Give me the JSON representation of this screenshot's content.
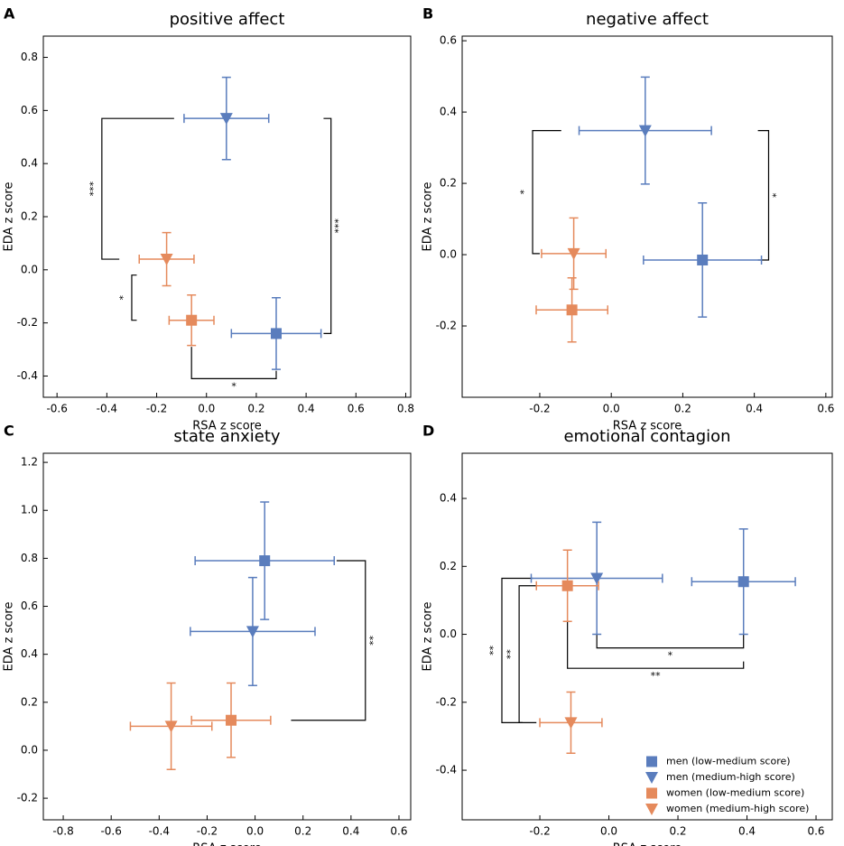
{
  "chart_data": [
    {
      "type": "scatter",
      "label": "A",
      "title": "positive affect",
      "xlabel": "RSA z score",
      "ylabel": "EDA z score",
      "xlim": [
        -0.655,
        0.82
      ],
      "ylim": [
        -0.48,
        0.88
      ],
      "xticks": [
        -0.6,
        -0.4,
        -0.2,
        {
          "value": 0,
          "label": "0.0"
        },
        0.2,
        0.4,
        0.6,
        0.8
      ],
      "yticks": [
        -0.4,
        -0.2,
        {
          "value": 0,
          "label": "0.0"
        },
        0.2,
        0.4,
        0.6,
        0.8
      ],
      "series": [
        {
          "color": "#5a7dbd",
          "marker": "square",
          "x": [
            0.28
          ],
          "values": [
            -0.24
          ],
          "xerr": [
            0.18
          ],
          "yerr": [
            0.135
          ]
        },
        {
          "color": "#5a7dbd",
          "marker": "triangle",
          "x": [
            0.08
          ],
          "values": [
            0.57
          ],
          "xerr": [
            0.17
          ],
          "yerr": [
            0.155
          ]
        },
        {
          "color": "#e58a5c",
          "marker": "square",
          "x": [
            -0.06
          ],
          "values": [
            -0.19
          ],
          "xerr": [
            0.09
          ],
          "yerr": [
            0.095
          ]
        },
        {
          "color": "#e58a5c",
          "marker": "triangle",
          "x": [
            -0.16
          ],
          "values": [
            0.04
          ],
          "xerr": [
            0.11
          ],
          "yerr": [
            0.1
          ]
        }
      ],
      "annotations": [
        "***",
        "*",
        "***",
        "*"
      ]
    },
    {
      "type": "scatter",
      "label": "B",
      "title": "negative affect",
      "xlabel": "RSA z score",
      "ylabel": "EDA z score",
      "xlim": [
        -0.417,
        0.618
      ],
      "ylim": [
        -0.4,
        0.613
      ],
      "xticks": [
        -0.2,
        {
          "value": 0,
          "label": "0.0"
        },
        0.2,
        0.4,
        0.6
      ],
      "yticks": [
        -0.2,
        {
          "value": 0,
          "label": "0.0"
        },
        0.2,
        0.4,
        0.6
      ],
      "series": [
        {
          "color": "#5a7dbd",
          "marker": "square",
          "x": [
            0.255
          ],
          "values": [
            -0.015
          ],
          "xerr": [
            0.165
          ],
          "yerr": [
            0.16
          ]
        },
        {
          "color": "#5a7dbd",
          "marker": "triangle",
          "x": [
            0.095
          ],
          "values": [
            0.348
          ],
          "xerr": [
            0.185
          ],
          "yerr": [
            0.15
          ]
        },
        {
          "color": "#e58a5c",
          "marker": "square",
          "x": [
            -0.11
          ],
          "values": [
            -0.155
          ],
          "xerr": [
            0.1
          ],
          "yerr": [
            0.09
          ]
        },
        {
          "color": "#e58a5c",
          "marker": "triangle",
          "x": [
            -0.105
          ],
          "values": [
            0.003
          ],
          "xerr": [
            0.09
          ],
          "yerr": [
            0.1
          ]
        }
      ],
      "annotations": [
        "*",
        "*"
      ]
    },
    {
      "type": "scatter",
      "label": "C",
      "title": "state anxiety",
      "xlabel": "RSA z score",
      "ylabel": "EDA z score",
      "xlim": [
        -0.883,
        0.649
      ],
      "ylim": [
        -0.29,
        1.238
      ],
      "xticks": [
        -0.8,
        -0.6,
        -0.4,
        -0.2,
        {
          "value": 0,
          "label": "0.0"
        },
        0.2,
        0.4,
        0.6
      ],
      "yticks": [
        -0.2,
        {
          "value": 0,
          "label": "0.0"
        },
        0.2,
        0.4,
        0.6,
        0.8,
        {
          "value": 1,
          "label": "1.0"
        },
        1.2
      ],
      "series": [
        {
          "color": "#5a7dbd",
          "marker": "square",
          "x": [
            0.04
          ],
          "values": [
            0.79
          ],
          "xerr": [
            0.29
          ],
          "yerr": [
            0.245
          ]
        },
        {
          "color": "#5a7dbd",
          "marker": "triangle",
          "x": [
            -0.01
          ],
          "values": [
            0.495
          ],
          "xerr": [
            0.26
          ],
          "yerr": [
            0.225
          ]
        },
        {
          "color": "#e58a5c",
          "marker": "square",
          "x": [
            -0.1
          ],
          "values": [
            0.125
          ],
          "xerr": [
            0.165
          ],
          "yerr": [
            0.155
          ]
        },
        {
          "color": "#e58a5c",
          "marker": "triangle",
          "x": [
            -0.35
          ],
          "values": [
            0.1
          ],
          "xerr": [
            0.17
          ],
          "yerr": [
            0.18
          ]
        }
      ],
      "annotations": [
        "**"
      ]
    },
    {
      "type": "scatter",
      "label": "D",
      "title": "emotional contagion",
      "xlabel": "RSA z score",
      "ylabel": "EDA z score",
      "xlim": [
        -0.425,
        0.647
      ],
      "ylim": [
        -0.546,
        0.533
      ],
      "xticks": [
        -0.2,
        {
          "value": 0,
          "label": "0.0"
        },
        0.2,
        0.4,
        0.6
      ],
      "yticks": [
        -0.4,
        -0.2,
        {
          "value": 0,
          "label": "0.0"
        },
        0.2,
        0.4
      ],
      "series": [
        {
          "name": "men (low-medium score)",
          "color": "#5a7dbd",
          "marker": "square",
          "x": [
            0.39
          ],
          "values": [
            0.155
          ],
          "xerr": [
            0.15
          ],
          "yerr": [
            0.155
          ]
        },
        {
          "name": "men (medium-high score)",
          "color": "#5a7dbd",
          "marker": "triangle",
          "x": [
            -0.035
          ],
          "values": [
            0.165
          ],
          "xerr": [
            0.19
          ],
          "yerr": [
            0.165
          ]
        },
        {
          "name": "women (low-medium score)",
          "color": "#e58a5c",
          "marker": "square",
          "x": [
            -0.12
          ],
          "values": [
            0.143
          ],
          "xerr": [
            0.09
          ],
          "yerr": [
            0.105
          ]
        },
        {
          "name": "women (medium-high score)",
          "color": "#e58a5c",
          "marker": "triangle",
          "x": [
            -0.11
          ],
          "values": [
            -0.26
          ],
          "xerr": [
            0.09
          ],
          "yerr": [
            0.09
          ]
        }
      ],
      "annotations": [
        "*",
        "**",
        "**",
        "**"
      ],
      "legend": "lower right"
    }
  ]
}
